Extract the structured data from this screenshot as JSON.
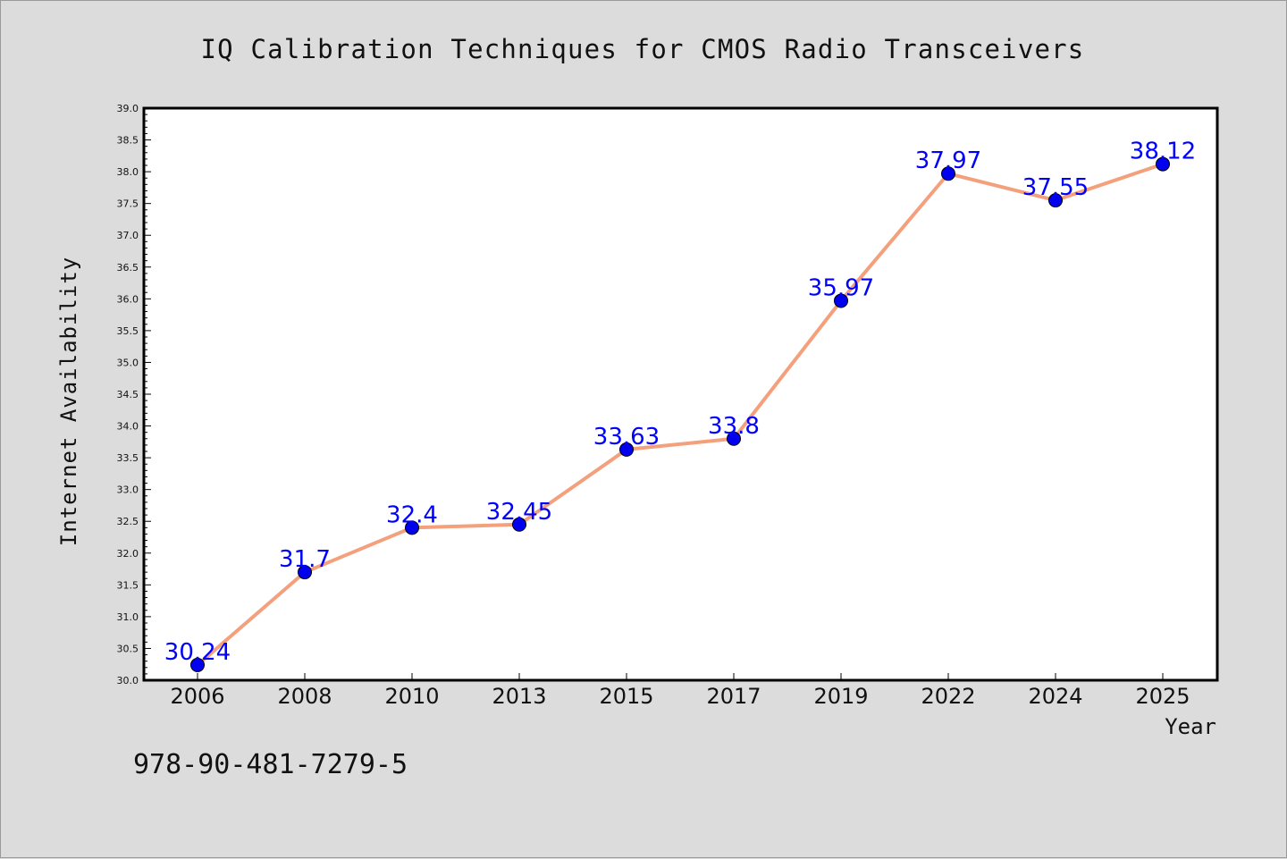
{
  "chart_data": {
    "type": "line",
    "title": "IQ Calibration Techniques for CMOS Radio Transceivers",
    "xlabel": "Year",
    "ylabel": "Internet Availability",
    "categories": [
      "2006",
      "2008",
      "2010",
      "2013",
      "2015",
      "2017",
      "2019",
      "2022",
      "2024",
      "2025"
    ],
    "values": [
      30.24,
      31.7,
      32.4,
      32.45,
      33.63,
      33.8,
      35.97,
      37.97,
      37.55,
      38.12
    ],
    "data_labels": [
      "30.24",
      "31.7",
      "32.4",
      "32.45",
      "33.63",
      "33.8",
      "35.97",
      "37.97",
      "37.55",
      "38.12"
    ],
    "ylim": [
      30.0,
      39.0
    ],
    "yticks": [
      "30.0",
      "30.5",
      "31.0",
      "31.5",
      "32.0",
      "32.5",
      "33.0",
      "33.5",
      "34.0",
      "34.5",
      "35.0",
      "35.5",
      "36.0",
      "36.5",
      "37.0",
      "37.5",
      "38.0",
      "38.5",
      "39.0"
    ],
    "line_color": "#f4a07c",
    "marker_color": "#0000ee",
    "label_color": "#0000ff",
    "grid": false,
    "legend": "none"
  },
  "annotation": "978-90-481-7279-5"
}
